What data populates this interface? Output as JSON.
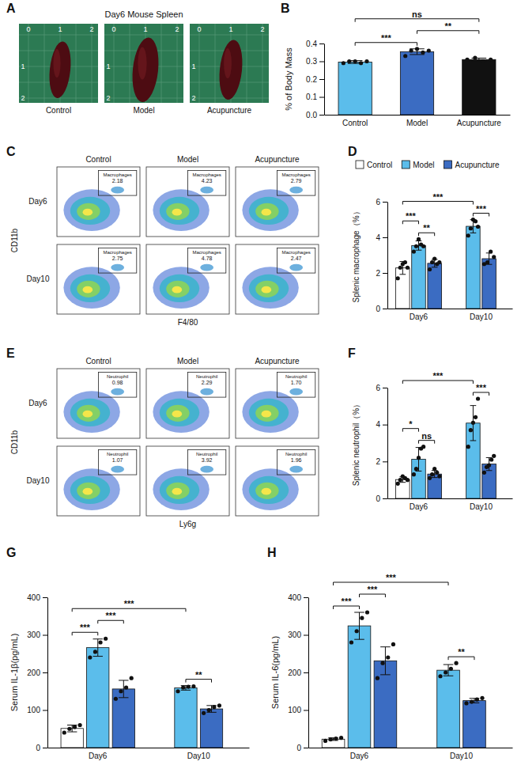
{
  "spleen_panel": {
    "panel_label": "A",
    "title": "Day6 Mouse Spleen",
    "groups": [
      "Control",
      "Model",
      "Acupuncture"
    ],
    "ruler_ticks": [
      0,
      1,
      2
    ]
  },
  "flow_panels": [
    {
      "panel_label": "C",
      "rows": [
        "Day6",
        "Day10"
      ],
      "columns": [
        "Control",
        "Model",
        "Acupuncture"
      ],
      "gate": "Macrophages",
      "gate_values": [
        [
          "2.18",
          "4.23",
          "2.79"
        ],
        [
          "2.75",
          "4.78",
          "2.47"
        ]
      ],
      "xlabel": "F4/80",
      "ylabel": "CD11b"
    },
    {
      "panel_label": "E",
      "rows": [
        "Day6",
        "Day10"
      ],
      "columns": [
        "Control",
        "Model",
        "Acupuncture"
      ],
      "gate": "Neutrophil",
      "gate_values": [
        [
          "0.98",
          "2.29",
          "1.70"
        ],
        [
          "1.07",
          "3.92",
          "1.96"
        ]
      ],
      "xlabel": "Ly6g",
      "ylabel": "CD11b"
    }
  ],
  "chart_data": [
    {
      "type": "bar",
      "panel_label": "B",
      "categories": [
        "Control",
        "Model",
        "Acupuncture"
      ],
      "values": [
        0.296,
        0.354,
        0.31
      ],
      "errors": [
        0.008,
        0.016,
        0.008
      ],
      "points": [
        [
          0.29,
          0.3,
          0.3,
          0.29,
          0.3
        ],
        [
          0.33,
          0.36,
          0.37,
          0.35,
          0.36
        ],
        [
          0.31,
          0.32,
          0.3,
          0.31
        ]
      ],
      "colors": [
        "#5bbdeb",
        "#3b6cc2",
        "#111111"
      ],
      "ylabel": "% of Body Mass",
      "ylim": [
        0,
        0.4
      ],
      "yticks": [
        {
          "value": 0,
          "label": "0.0"
        },
        0.1,
        0.2,
        0.3,
        0.4
      ],
      "annotations": [
        {
          "from": 0,
          "to": 1,
          "label": "***"
        },
        {
          "from": 1,
          "to": 2,
          "label": "**"
        },
        {
          "from": 0,
          "to": 2,
          "label": "ns"
        }
      ]
    },
    {
      "type": "bar",
      "panel_label": "D",
      "categories": [
        "Day6",
        "Day10"
      ],
      "legend": "top",
      "series": [
        {
          "name": "Control",
          "color": "#ffffff",
          "values": [
            2.28,
            null
          ],
          "errors": [
            0.36,
            null
          ],
          "points": [
            [
              1.7,
              2.3,
              2.5,
              2.6,
              2.3
            ],
            null
          ]
        },
        {
          "name": "Model",
          "color": "#5bbdeb",
          "values": [
            3.54,
            4.62
          ],
          "errors": [
            0.26,
            0.37
          ],
          "points": [
            [
              3.2,
              3.5,
              3.9,
              3.6,
              3.5
            ],
            [
              4.1,
              4.5,
              5.0,
              4.9,
              4.6
            ]
          ]
        },
        {
          "name": "Acupuncture",
          "color": "#3b6cc2",
          "values": [
            2.54,
            2.8
          ],
          "errors": [
            0.22,
            0.32
          ],
          "points": [
            [
              2.2,
              2.6,
              2.8,
              2.5,
              2.6
            ],
            [
              2.5,
              2.6,
              3.2,
              2.9
            ]
          ]
        }
      ],
      "ylabel": "Splenic macrophage（%）",
      "ylim": [
        0,
        6
      ],
      "yticks": [
        0,
        2,
        4,
        6
      ],
      "annotations": [
        {
          "from": [
            0,
            0
          ],
          "to": [
            0,
            1
          ],
          "label": "***"
        },
        {
          "from": [
            0,
            1
          ],
          "to": [
            0,
            2
          ],
          "label": "**"
        },
        {
          "from": [
            0,
            0
          ],
          "to": [
            1,
            1
          ],
          "label": "***"
        },
        {
          "from": [
            1,
            1
          ],
          "to": [
            1,
            2
          ],
          "label": "***"
        }
      ]
    },
    {
      "type": "bar",
      "panel_label": "F",
      "categories": [
        "Day6",
        "Day10"
      ],
      "series": [
        {
          "name": "Control",
          "color": "#ffffff",
          "values": [
            1.02,
            null
          ],
          "errors": [
            0.15,
            null
          ],
          "points": [
            [
              0.8,
              1.0,
              1.2,
              1.1,
              1.0
            ],
            null
          ]
        },
        {
          "name": "Model",
          "color": "#5bbdeb",
          "values": [
            2.12,
            4.08
          ],
          "errors": [
            0.64,
            0.95
          ],
          "points": [
            [
              1.3,
              1.6,
              2.2,
              2.7,
              2.8
            ],
            [
              2.8,
              3.7,
              4.1,
              4.4,
              5.4
            ]
          ]
        },
        {
          "name": "Acupuncture",
          "color": "#3b6cc2",
          "values": [
            1.32,
            1.86
          ],
          "errors": [
            0.19,
            0.35
          ],
          "points": [
            [
              1.1,
              1.3,
              1.6,
              1.4,
              1.2
            ],
            [
              1.4,
              1.7,
              1.8,
              2.1,
              2.3
            ]
          ]
        }
      ],
      "ylabel": "Splenic neutrophil（%）",
      "ylim": [
        0,
        6
      ],
      "yticks": [
        0,
        2,
        4,
        6
      ],
      "annotations": [
        {
          "from": [
            0,
            0
          ],
          "to": [
            0,
            1
          ],
          "label": "*"
        },
        {
          "from": [
            0,
            1
          ],
          "to": [
            0,
            2
          ],
          "label": "ns"
        },
        {
          "from": [
            0,
            0
          ],
          "to": [
            1,
            1
          ],
          "label": "***"
        },
        {
          "from": [
            1,
            1
          ],
          "to": [
            1,
            2
          ],
          "label": "***"
        }
      ]
    },
    {
      "type": "bar",
      "panel_label": "G",
      "categories": [
        "Day6",
        "Day10"
      ],
      "series": [
        {
          "name": "Control",
          "color": "#ffffff",
          "values": [
            51,
            null
          ],
          "errors": [
            9,
            null
          ],
          "points": [
            [
              40,
              50,
              55,
              60
            ],
            null
          ]
        },
        {
          "name": "Model",
          "color": "#5bbdeb",
          "values": [
            266,
            159
          ],
          "errors": [
            23,
            6
          ],
          "points": [
            [
              240,
              255,
              280,
              290
            ],
            [
              150,
              160,
              162,
              163
            ]
          ]
        },
        {
          "name": "Acupuncture",
          "color": "#3b6cc2",
          "values": [
            156,
            103
          ],
          "errors": [
            23,
            9
          ],
          "points": [
            [
              130,
              150,
              160,
              185
            ],
            [
              92,
              100,
              108,
              112
            ]
          ]
        }
      ],
      "ylabel": "Serum IL-1β(pg/mL)",
      "ylim": [
        0,
        400
      ],
      "yticks": [
        0,
        100,
        200,
        300,
        400
      ],
      "annotations": [
        {
          "from": [
            0,
            0
          ],
          "to": [
            0,
            1
          ],
          "label": "***"
        },
        {
          "from": [
            0,
            1
          ],
          "to": [
            0,
            2
          ],
          "label": "***"
        },
        {
          "from": [
            0,
            0
          ],
          "to": [
            1,
            1
          ],
          "label": "***"
        },
        {
          "from": [
            1,
            1
          ],
          "to": [
            1,
            2
          ],
          "label": "**"
        }
      ]
    },
    {
      "type": "bar",
      "panel_label": "H",
      "categories": [
        "Day6",
        "Day10"
      ],
      "series": [
        {
          "name": "Control",
          "color": "#ffffff",
          "values": [
            22.5,
            null
          ],
          "errors": [
            3.4,
            null
          ],
          "points": [
            [
              18,
              22,
              24,
              26
            ],
            null
          ]
        },
        {
          "name": "Model",
          "color": "#5bbdeb",
          "values": [
            324,
            206
          ],
          "errors": [
            36,
            15
          ],
          "points": [
            [
              280,
              310,
              345,
              360
            ],
            [
              190,
              200,
              210,
              225
            ]
          ]
        },
        {
          "name": "Acupuncture",
          "color": "#3b6cc2",
          "values": [
            231,
            125
          ],
          "errors": [
            37,
            6
          ],
          "points": [
            [
              185,
              225,
              240,
              275
            ],
            [
              118,
              122,
              128,
              132
            ]
          ]
        }
      ],
      "ylabel": "Serum IL-6(pg/mL)",
      "ylim": [
        0,
        400
      ],
      "yticks": [
        0,
        100,
        200,
        300,
        400
      ],
      "annotations": [
        {
          "from": [
            0,
            0
          ],
          "to": [
            0,
            1
          ],
          "label": "***"
        },
        {
          "from": [
            0,
            1
          ],
          "to": [
            0,
            2
          ],
          "label": "***"
        },
        {
          "from": [
            0,
            0
          ],
          "to": [
            1,
            1
          ],
          "label": "***"
        },
        {
          "from": [
            1,
            1
          ],
          "to": [
            1,
            2
          ],
          "label": "**"
        }
      ]
    }
  ]
}
